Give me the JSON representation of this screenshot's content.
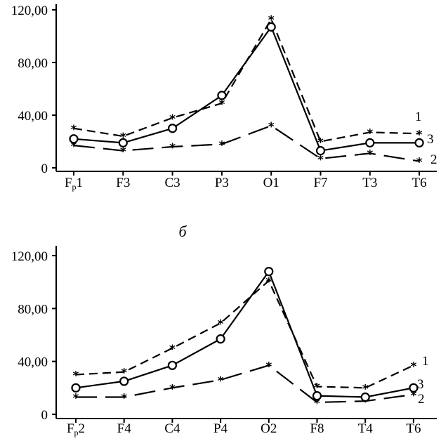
{
  "chart_data": [
    {
      "type": "line",
      "panel_label": "",
      "ylim": [
        0,
        120
      ],
      "yticks": [
        "0",
        "40,00",
        "80,00",
        "120,00"
      ],
      "categories": [
        {
          "main": "F",
          "sub": "p",
          "tail": "1"
        },
        {
          "main": "F3",
          "sub": "",
          "tail": ""
        },
        {
          "main": "C3",
          "sub": "",
          "tail": ""
        },
        {
          "main": "P3",
          "sub": "",
          "tail": ""
        },
        {
          "main": "O1",
          "sub": "",
          "tail": ""
        },
        {
          "main": "F7",
          "sub": "",
          "tail": ""
        },
        {
          "main": "T3",
          "sub": "",
          "tail": ""
        },
        {
          "main": "T6",
          "sub": "",
          "tail": ""
        }
      ],
      "series": [
        {
          "name": "1",
          "style": "dashed",
          "marker": "star",
          "values": [
            30,
            24,
            38,
            49,
            113,
            20,
            27,
            26
          ]
        },
        {
          "name": "2",
          "style": "longdash",
          "marker": "star",
          "values": [
            17,
            13,
            16,
            18,
            32,
            7,
            11,
            5
          ]
        },
        {
          "name": "3",
          "style": "solid",
          "marker": "circle",
          "values": [
            22,
            19,
            30,
            55,
            107,
            13,
            19,
            19
          ]
        }
      ]
    },
    {
      "type": "line",
      "panel_label": "б",
      "ylim": [
        0,
        120
      ],
      "yticks": [
        "0",
        "40,00",
        "80,00",
        "120,00"
      ],
      "categories": [
        {
          "main": "F",
          "sub": "p",
          "tail": "2"
        },
        {
          "main": "F4",
          "sub": "",
          "tail": ""
        },
        {
          "main": "C4",
          "sub": "",
          "tail": ""
        },
        {
          "main": "P4",
          "sub": "",
          "tail": ""
        },
        {
          "main": "O2",
          "sub": "",
          "tail": ""
        },
        {
          "main": "F8",
          "sub": "",
          "tail": ""
        },
        {
          "main": "T4",
          "sub": "",
          "tail": ""
        },
        {
          "main": "T6",
          "sub": "",
          "tail": ""
        }
      ],
      "series": [
        {
          "name": "1",
          "style": "dashed",
          "marker": "star",
          "values": [
            30,
            32,
            50,
            69,
            101,
            21,
            20,
            37
          ]
        },
        {
          "name": "2",
          "style": "longdash",
          "marker": "star",
          "values": [
            13,
            13,
            20,
            26,
            37,
            9,
            10,
            15
          ]
        },
        {
          "name": "3",
          "style": "solid",
          "marker": "circle",
          "values": [
            20,
            25,
            37,
            57,
            108,
            14,
            13,
            20
          ]
        }
      ]
    }
  ]
}
